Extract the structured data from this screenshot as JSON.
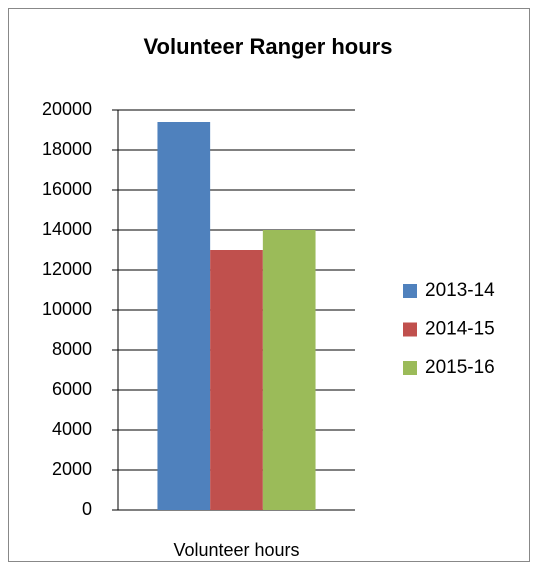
{
  "chart_data": {
    "type": "bar",
    "title": "Volunteer Ranger hours",
    "categories": [
      "Volunteer hours"
    ],
    "series": [
      {
        "name": "2013-14",
        "color": "#4f81bd",
        "values": [
          19400
        ]
      },
      {
        "name": "2014-15",
        "color": "#c0504d",
        "values": [
          13000
        ]
      },
      {
        "name": "2015-16",
        "color": "#9bbb59",
        "values": [
          14000
        ]
      }
    ],
    "ylim": [
      0,
      20000
    ],
    "yticks": [
      0,
      2000,
      4000,
      6000,
      8000,
      10000,
      12000,
      14000,
      16000,
      18000,
      20000
    ],
    "grid": true,
    "legend": "right"
  }
}
